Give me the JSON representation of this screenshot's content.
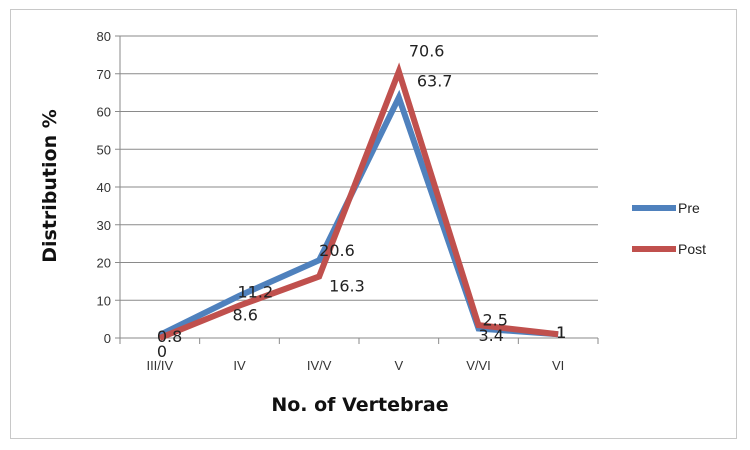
{
  "chart_data": {
    "type": "line",
    "title": "",
    "xlabel": "No. of Vertebrae",
    "ylabel": "Distribution %",
    "categories": [
      "III/IV",
      "IV",
      "IV/V",
      "V",
      "V/VI",
      "VI"
    ],
    "ylim": [
      0,
      80
    ],
    "yticks": [
      "0",
      "10",
      "20",
      "30",
      "40",
      "50",
      "60",
      "70",
      "80"
    ],
    "grid": true,
    "legend_position": "right",
    "series": [
      {
        "name": "Pre",
        "color": "#4F81BD",
        "values": [
          0.8,
          11.2,
          20.6,
          63.7,
          2.5,
          1
        ],
        "labels": [
          "0.8",
          "11.2",
          "20.6",
          "63.7",
          "2.5",
          "1"
        ]
      },
      {
        "name": "Post",
        "color": "#C0504D",
        "values": [
          0,
          8.6,
          16.3,
          70.6,
          3.4,
          1
        ],
        "labels": [
          "0",
          "8.6",
          "16.3",
          "70.6",
          "3.4",
          "1"
        ]
      }
    ]
  }
}
